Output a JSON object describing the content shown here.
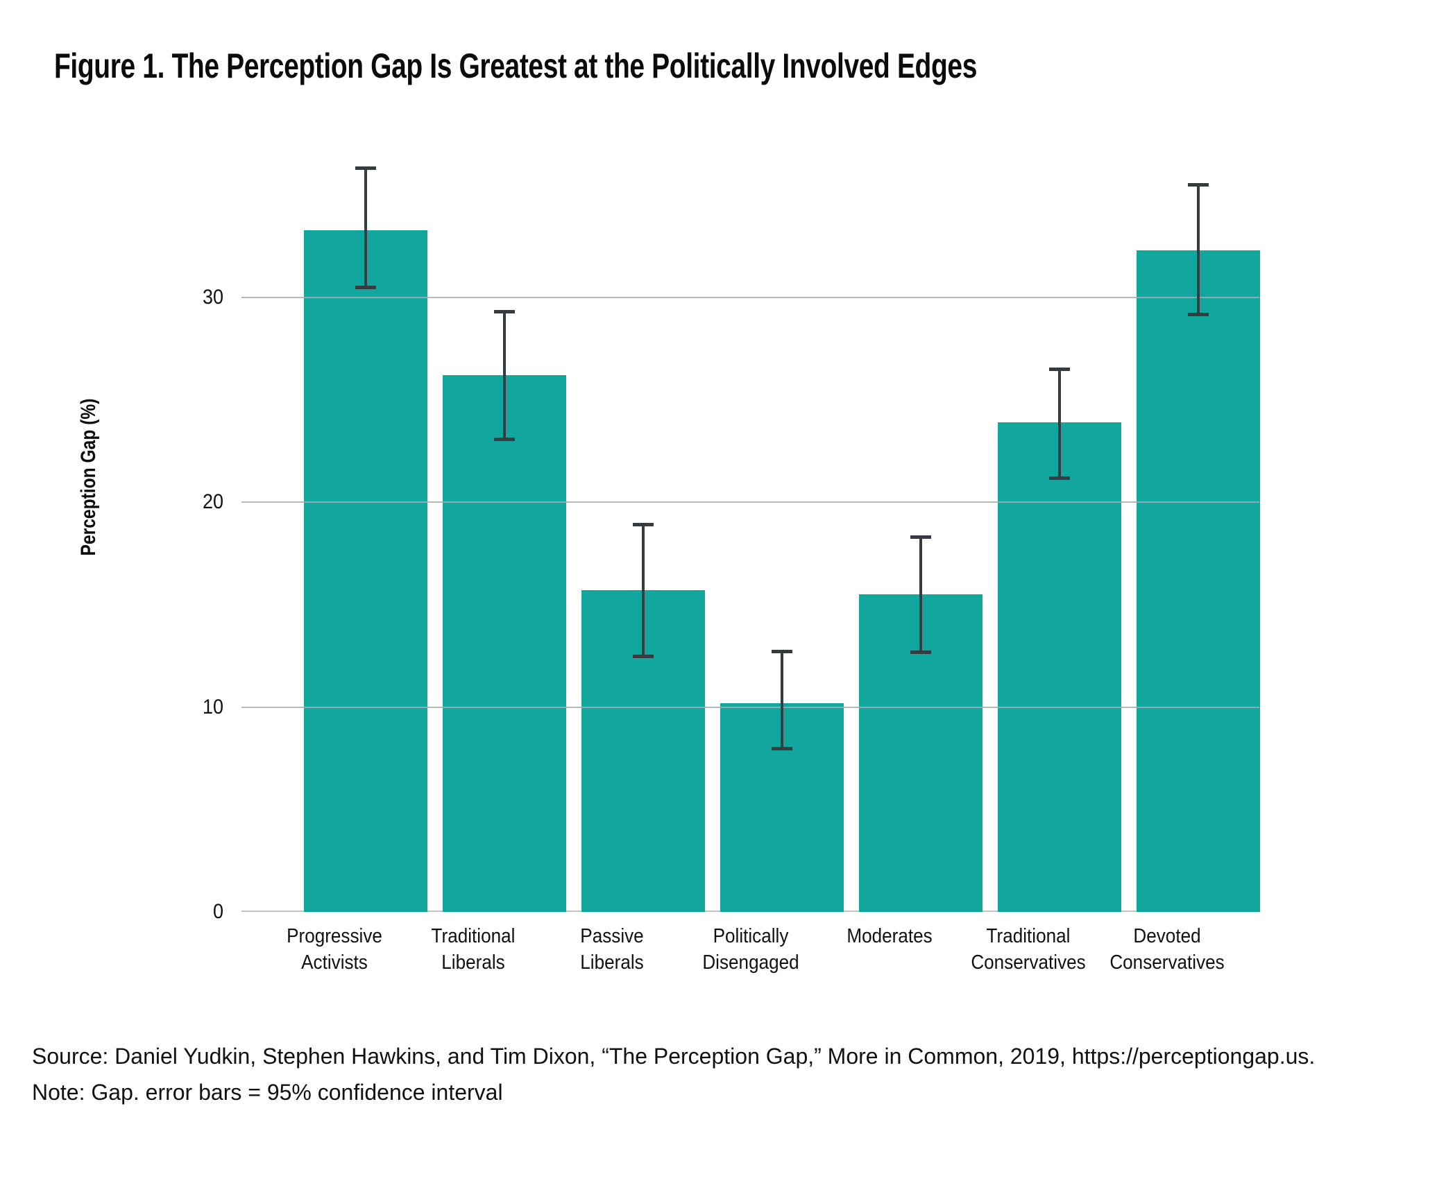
{
  "title": "Figure 1. The Perception Gap Is Greatest at the Politically Involved Edges",
  "footer": {
    "source": "Source: Daniel Yudkin, Stephen Hawkins, and Tim Dixon, “The Perception Gap,” More in Common, 2019, https://perceptiongap.us.",
    "note": "Note: Gap. error bars = 95% confidence interval"
  },
  "chart_data": {
    "type": "bar",
    "title": "Figure 1. The Perception Gap Is Greatest at the Politically Involved Edges",
    "xlabel": "",
    "ylabel": "Perception Gap (%)",
    "categories": [
      "Progressive Activists",
      "Traditional Liberals",
      "Passive Liberals",
      "Politically Disengaged",
      "Moderates",
      "Traditional Conservatives",
      "Devoted Conservatives"
    ],
    "values": [
      33.3,
      26.2,
      15.7,
      10.2,
      15.5,
      23.9,
      32.3
    ],
    "error_bars_95ci_low": [
      30.4,
      23.0,
      12.4,
      7.9,
      12.6,
      21.1,
      29.1
    ],
    "error_bars_95ci_high": [
      36.4,
      29.4,
      19.0,
      12.8,
      18.4,
      26.6,
      35.6
    ],
    "yticks": [
      0,
      10,
      20,
      30
    ],
    "ylim": [
      0,
      39.4
    ],
    "grid": "horizontal-only",
    "legend": "none",
    "bar_color": "#12a79e",
    "error_bar_color": "#363b40",
    "gridline_color": "#c9c9c9",
    "note": "error bars = 95% confidence interval"
  }
}
